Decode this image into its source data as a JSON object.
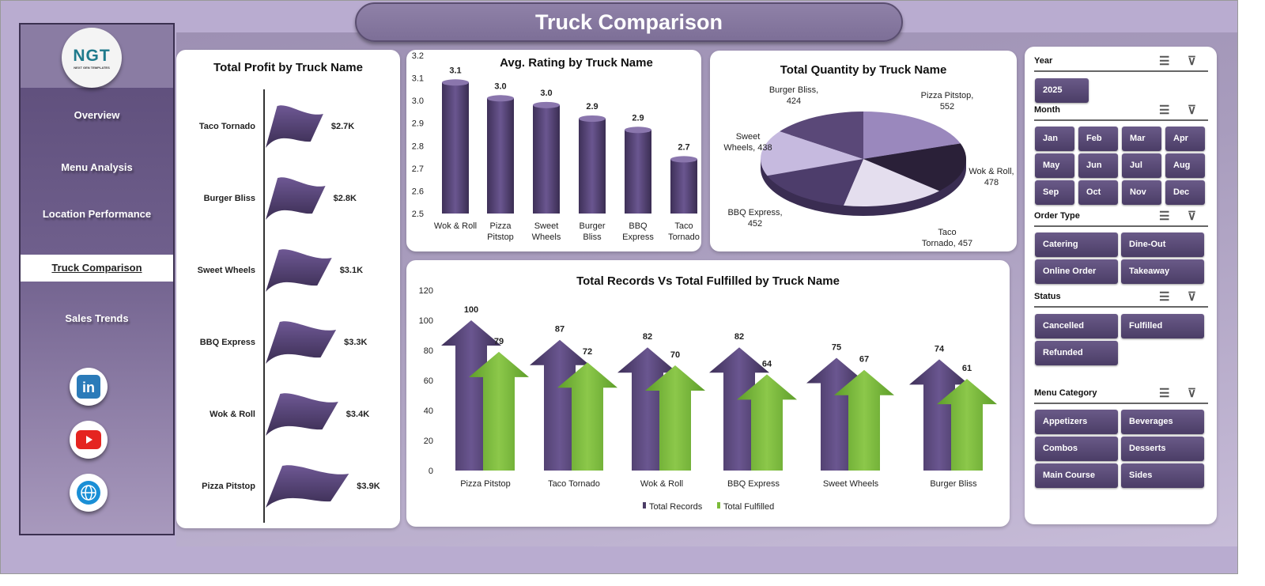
{
  "header": {
    "title": "Truck Comparison"
  },
  "sidebar": {
    "logo_text": "NGT",
    "logo_subtext": "NEXT GEN TEMPLATES",
    "items": [
      {
        "label": "Overview"
      },
      {
        "label": "Menu Analysis"
      },
      {
        "label": "Location Performance"
      },
      {
        "label": "Truck Comparison",
        "active": true
      },
      {
        "label": "Sales Trends"
      }
    ],
    "social": [
      "linkedin-icon",
      "youtube-icon",
      "globe-icon"
    ]
  },
  "colors": {
    "primary": "#5b4a7b",
    "green": "#7cbb3a",
    "accent_dark": "#2a2038"
  },
  "chart_data": [
    {
      "type": "bar",
      "title": "Total Profit by Truck Name",
      "orientation": "horizontal",
      "marker": "flag",
      "categories": [
        "Taco Tornado",
        "Burger Bliss",
        "Sweet Wheels",
        "BBQ Express",
        "Wok & Roll",
        "Pizza Pitstop"
      ],
      "values": [
        2.7,
        2.8,
        3.1,
        3.3,
        3.4,
        3.9
      ],
      "labels": [
        "$2.7K",
        "$2.8K",
        "$3.1K",
        "$3.3K",
        "$3.4K",
        "$3.9K"
      ],
      "unit": "$K"
    },
    {
      "type": "bar",
      "title": "Avg. Rating by Truck Name",
      "categories": [
        "Wok & Roll",
        "Pizza Pitstop",
        "Sweet Wheels",
        "Burger Bliss",
        "BBQ Express",
        "Taco Tornado"
      ],
      "values": [
        3.08,
        3.01,
        2.98,
        2.92,
        2.87,
        2.74
      ],
      "labels": [
        "3.1",
        "3.0",
        "3.0",
        "2.9",
        "2.9",
        "2.7"
      ],
      "ylim": [
        2.5,
        3.2
      ],
      "yticks": [
        "2.5",
        "2.6",
        "2.7",
        "2.8",
        "2.9",
        "3.0",
        "3.1",
        "3.2"
      ]
    },
    {
      "type": "pie",
      "title": "Total Quantity by Truck Name",
      "categories": [
        "Pizza Pitstop",
        "Wok & Roll",
        "Taco Tornado",
        "BBQ Express",
        "Sweet Wheels",
        "Burger Bliss"
      ],
      "values": [
        552,
        478,
        457,
        452,
        438,
        424
      ],
      "labels": [
        [
          "Pizza Pitstop,",
          "552"
        ],
        [
          "Wok & Roll,",
          "478"
        ],
        [
          "Taco",
          "Tornado, 457"
        ],
        [
          "BBQ Express,",
          "452"
        ],
        [
          "Sweet",
          "Wheels, 438"
        ],
        [
          "Burger Bliss,",
          "424"
        ]
      ]
    },
    {
      "type": "bar",
      "title": "Total Records Vs Total Fulfilled by Truck Name",
      "marker": "arrow",
      "categories": [
        "Pizza Pitstop",
        "Taco Tornado",
        "Wok & Roll",
        "BBQ Express",
        "Sweet Wheels",
        "Burger Bliss"
      ],
      "series": [
        {
          "name": "Total Records",
          "values": [
            100,
            87,
            82,
            82,
            75,
            74
          ]
        },
        {
          "name": "Total Fulfilled",
          "values": [
            79,
            72,
            70,
            64,
            67,
            61
          ]
        }
      ],
      "ylim": [
        0,
        120
      ],
      "yticks": [
        "0",
        "20",
        "40",
        "60",
        "80",
        "100",
        "120"
      ],
      "legend": "bottom"
    }
  ],
  "slicers": [
    {
      "title": "Year",
      "items": [
        "2025"
      ]
    },
    {
      "title": "Month",
      "items": [
        "Jan",
        "Feb",
        "Mar",
        "Apr",
        "May",
        "Jun",
        "Jul",
        "Aug",
        "Sep",
        "Oct",
        "Nov",
        "Dec"
      ]
    },
    {
      "title": "Order Type",
      "items": [
        "Catering",
        "Dine-Out",
        "Online Order",
        "Takeaway"
      ]
    },
    {
      "title": "Status",
      "items": [
        "Cancelled",
        "Fulfilled",
        "Refunded"
      ]
    },
    {
      "title": "Menu Category",
      "items": [
        "Appetizers",
        "Beverages",
        "Combos",
        "Desserts",
        "Main Course",
        "Sides"
      ]
    }
  ]
}
